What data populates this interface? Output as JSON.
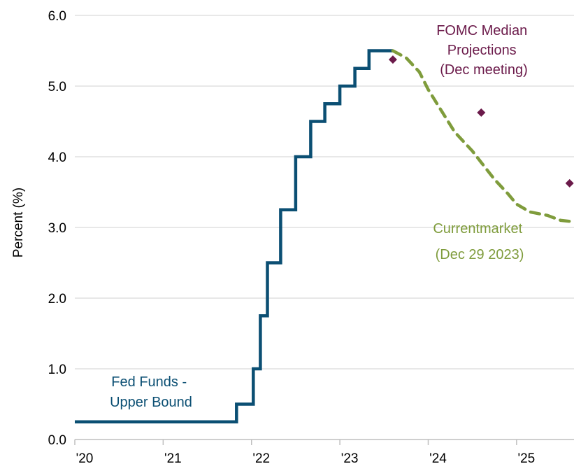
{
  "chart_data": {
    "type": "line",
    "title": "",
    "xlabel": "",
    "ylabel": "Percent (%)",
    "ylim": [
      0,
      6
    ],
    "yticks": [
      "0.0",
      "1.0",
      "2.0",
      "3.0",
      "4.0",
      "5.0",
      "6.0"
    ],
    "xlim": [
      2020.0,
      2025.65
    ],
    "xticks": [
      {
        "value": 2020,
        "label": "'20"
      },
      {
        "value": 2021,
        "label": "'21"
      },
      {
        "value": 2022,
        "label": "'22"
      },
      {
        "value": 2023,
        "label": "'23"
      },
      {
        "value": 2024,
        "label": "'24"
      },
      {
        "value": 2025,
        "label": "'25"
      }
    ],
    "grid": true,
    "legend": "none",
    "series": [
      {
        "name": "Fed Funds - Upper Bound",
        "style": "step",
        "color": "#0b4f73",
        "x": [
          2020.0,
          2021.83,
          2021.83,
          2022.02,
          2022.02,
          2022.1,
          2022.1,
          2022.18,
          2022.18,
          2022.33,
          2022.33,
          2022.5,
          2022.5,
          2022.67,
          2022.67,
          2022.83,
          2022.83,
          2023.0,
          2023.0,
          2023.17,
          2023.17,
          2023.33,
          2023.33,
          2023.6
        ],
        "values": [
          0.25,
          0.25,
          0.5,
          0.5,
          1.0,
          1.0,
          1.75,
          1.75,
          2.5,
          2.5,
          3.25,
          3.25,
          4.0,
          4.0,
          4.5,
          4.5,
          4.75,
          4.75,
          5.0,
          5.0,
          5.25,
          5.25,
          5.5,
          5.5
        ]
      },
      {
        "name": "Current market (Dec 29 2023)",
        "style": "dashed",
        "color": "#7f9c3c",
        "x": [
          2023.6,
          2023.75,
          2023.9,
          2024.0,
          2024.15,
          2024.3,
          2024.5,
          2024.6,
          2024.75,
          2024.9,
          2025.0,
          2025.15,
          2025.35,
          2025.5,
          2025.65
        ],
        "values": [
          5.5,
          5.4,
          5.2,
          4.95,
          4.65,
          4.35,
          4.08,
          3.92,
          3.68,
          3.48,
          3.33,
          3.22,
          3.17,
          3.1,
          3.08
        ]
      },
      {
        "name": "FOMC Median Projections (Dec meeting)",
        "style": "marker",
        "color": "#6b1a4a",
        "x": [
          2023.6,
          2024.6,
          2025.6
        ],
        "values": [
          5.375,
          4.625,
          3.625
        ]
      }
    ],
    "annotations": {
      "fed_funds": [
        "Fed Funds -",
        "Upper Bound"
      ],
      "market": [
        "Currentmarket",
        "(Dec 29 2023)"
      ],
      "fomc": [
        "FOMC Median",
        "Projections",
        "(Dec meeting)"
      ]
    },
    "colors": {
      "grid": "#d9d9d9",
      "axis": "#bfbfbf",
      "fed_funds": "#0b4f73",
      "market": "#7f9c3c",
      "fomc": "#6b1a4a"
    }
  }
}
